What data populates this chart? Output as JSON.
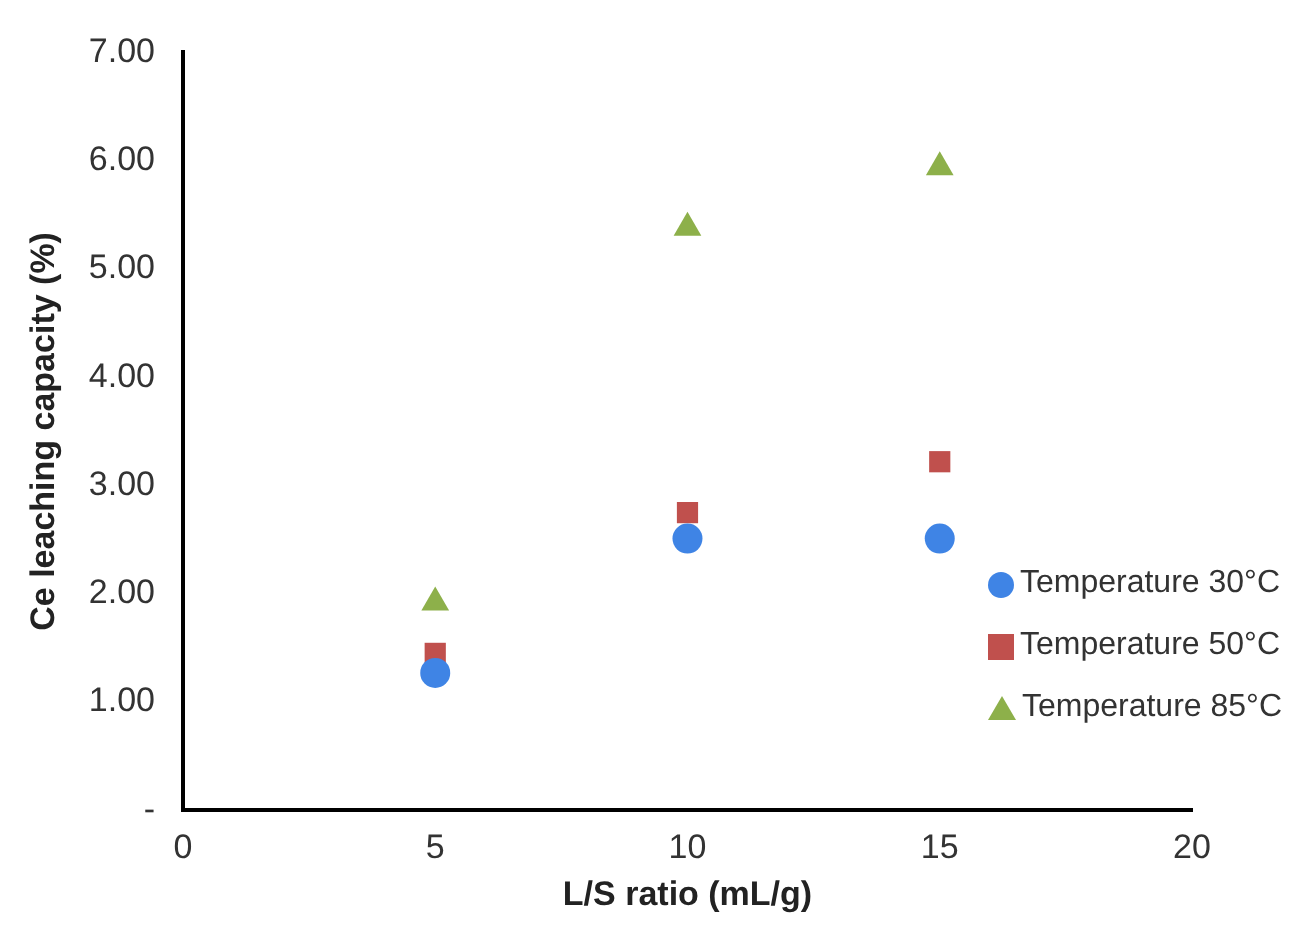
{
  "chart_data": {
    "type": "scatter",
    "xlabel": "L/S ratio (mL/g)",
    "ylabel": "Ce leaching capacity (%)",
    "x": [
      5,
      10,
      15
    ],
    "series": [
      {
        "name": "Temperature 30°C",
        "color": "#3f84e5",
        "marker": "circle",
        "values": [
          1.27,
          2.51,
          2.51
        ]
      },
      {
        "name": "Temperature 50°C",
        "color": "#c0504d",
        "marker": "square",
        "values": [
          1.45,
          2.75,
          3.22
        ]
      },
      {
        "name": "Temperature 85°C",
        "color": "#8db04a",
        "marker": "triangle",
        "values": [
          1.92,
          5.38,
          5.94
        ]
      }
    ],
    "xlim": [
      0,
      20
    ],
    "xticks": [
      0,
      5,
      10,
      15,
      20
    ],
    "ylim": [
      0,
      7
    ],
    "yticks": [
      {
        "value": 0,
        "label": "-"
      },
      {
        "value": 1,
        "label": "1.00"
      },
      {
        "value": 2,
        "label": "2.00"
      },
      {
        "value": 3,
        "label": "3.00"
      },
      {
        "value": 4,
        "label": "4.00"
      },
      {
        "value": 5,
        "label": "5.00"
      },
      {
        "value": 6,
        "label": "6.00"
      },
      {
        "value": 7,
        "label": "7.00"
      }
    ],
    "grid": false,
    "legend": "bottom right"
  }
}
